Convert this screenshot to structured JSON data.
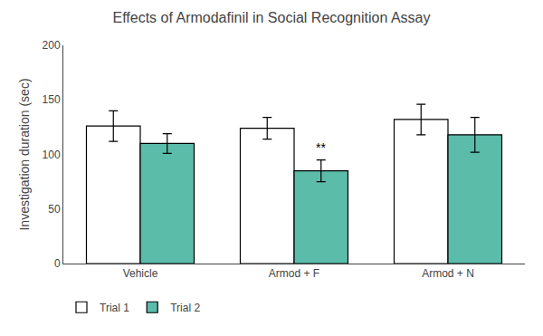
{
  "chart_data": {
    "type": "bar",
    "title": "Effects of Armodafinil in Social Recognition Assay",
    "ylabel": "Investigation duration (sec)",
    "categories": [
      "Vehicle",
      "Armod + F",
      "Armod + N"
    ],
    "series": [
      {
        "name": "Trial 1",
        "color": "#FFFFFF",
        "values": [
          126,
          124,
          132
        ],
        "errors": [
          14,
          10,
          14
        ]
      },
      {
        "name": "Trial 2",
        "color": "#5BBCAA",
        "values": [
          110,
          85,
          118
        ],
        "errors": [
          9,
          10,
          16
        ]
      }
    ],
    "ylim": [
      0,
      200
    ],
    "yticks": [
      0,
      50,
      100,
      150,
      200
    ],
    "annotations": [
      {
        "text": "**",
        "category": "Armod + F",
        "series": "Trial 2"
      }
    ],
    "grid": false,
    "legend": "bottom"
  }
}
